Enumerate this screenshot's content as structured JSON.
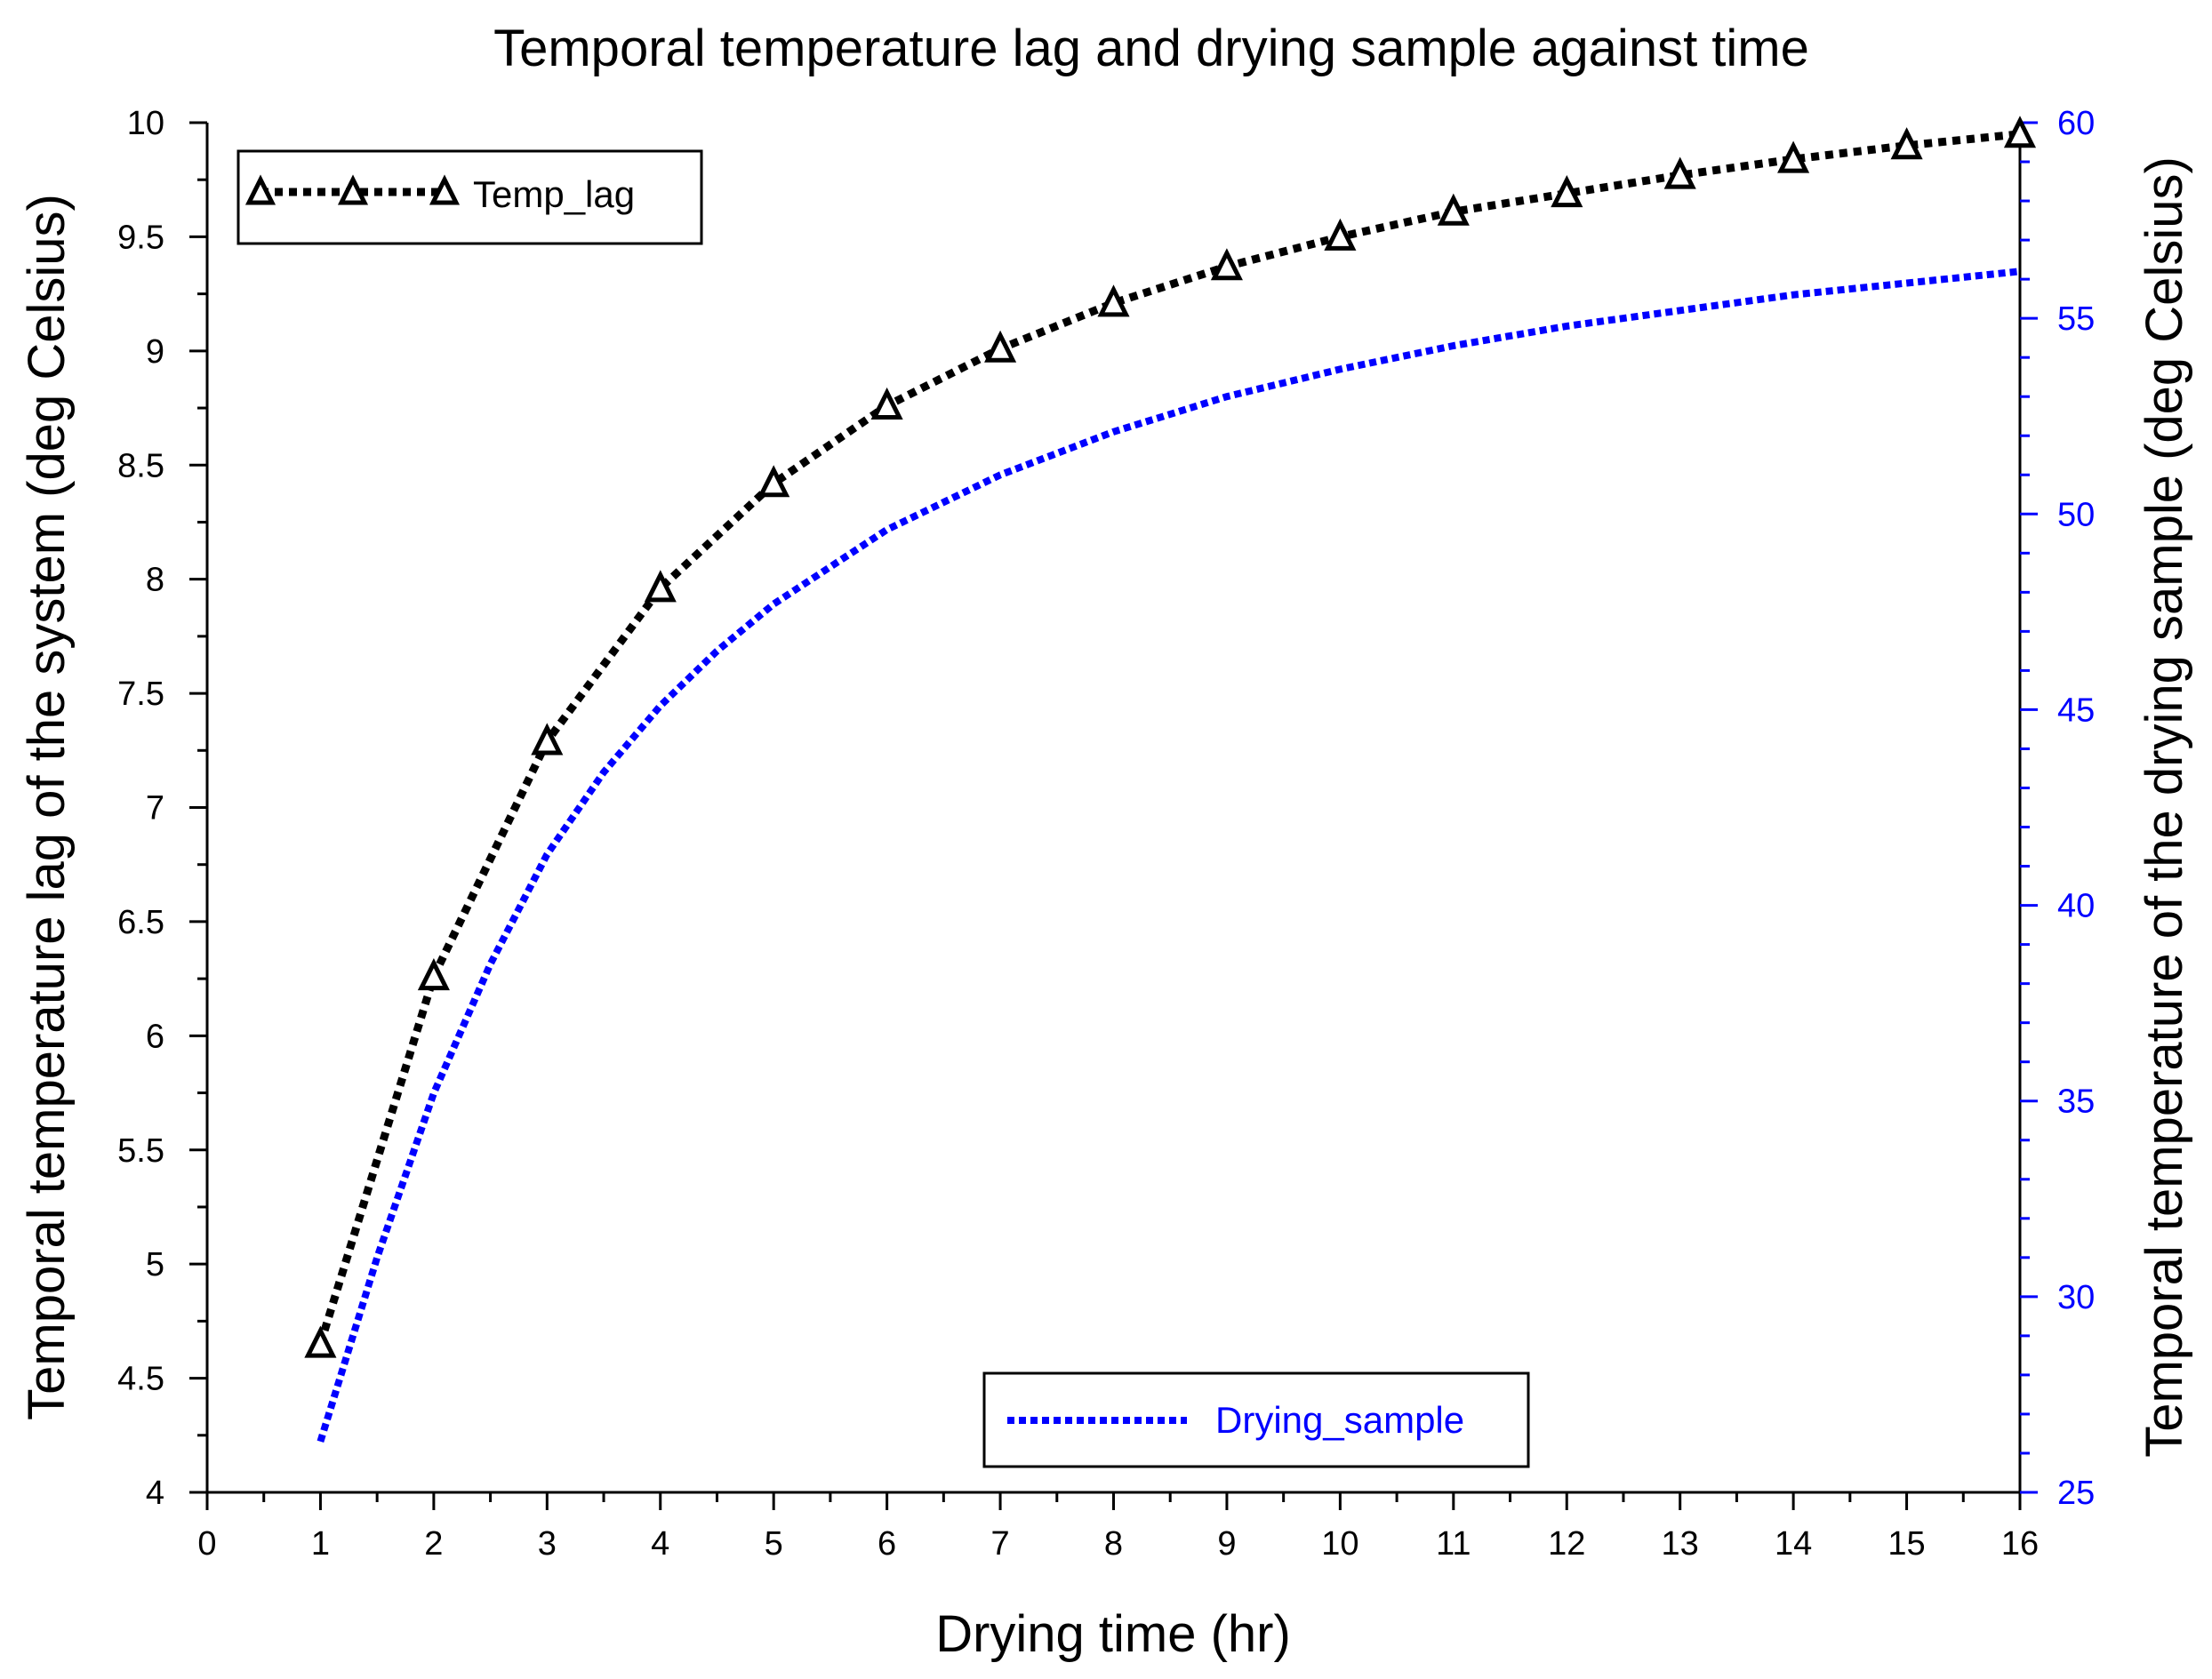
{
  "chart_data": {
    "type": "line",
    "title": "Temporal temperature lag and drying sample against time",
    "xlabel": "Drying time (hr)",
    "ylabel_left": "Temporal temperature lag of the system (deg Celsius)",
    "ylabel_right": "Temporal temperature of the drying sample (deg Celsius)",
    "xlim": [
      0,
      16
    ],
    "ylim_left": [
      4,
      10
    ],
    "ylim_right": [
      25,
      60
    ],
    "x_ticks": [
      "0",
      "1",
      "2",
      "3",
      "4",
      "5",
      "6",
      "7",
      "8",
      "9",
      "10",
      "11",
      "12",
      "13",
      "14",
      "15",
      "16"
    ],
    "y_left_ticks": [
      "4",
      "4.5",
      "5",
      "5.5",
      "6",
      "6.5",
      "7",
      "7.5",
      "8",
      "8.5",
      "9",
      "9.5",
      "10"
    ],
    "y_right_ticks": [
      "25",
      "30",
      "35",
      "40",
      "45",
      "50",
      "55",
      "60"
    ],
    "series": [
      {
        "name": "Temp_lag",
        "axis": "left",
        "color": "#000000",
        "marker": "open-triangle",
        "line": "dotted",
        "x": [
          1,
          2,
          3,
          4,
          5,
          6,
          7,
          8,
          9,
          10,
          11,
          12,
          13,
          14,
          15,
          16
        ],
        "values": [
          4.65,
          6.26,
          7.29,
          7.96,
          8.42,
          8.76,
          9.01,
          9.21,
          9.37,
          9.5,
          9.61,
          9.69,
          9.77,
          9.84,
          9.9,
          9.95
        ]
      },
      {
        "name": "Drying_sample",
        "axis": "right",
        "color": "#0000ff",
        "marker": "none",
        "line": "dotted",
        "x": [
          1,
          1.5,
          2,
          2.5,
          3,
          3.5,
          4,
          4.5,
          5,
          6,
          7,
          8,
          9,
          10,
          11,
          12,
          13,
          14,
          15,
          16
        ],
        "values": [
          26.3,
          31.0,
          35.2,
          38.5,
          41.3,
          43.4,
          45.1,
          46.5,
          47.7,
          49.6,
          51.0,
          52.1,
          53.0,
          53.7,
          54.3,
          54.8,
          55.2,
          55.6,
          55.9,
          56.2
        ]
      }
    ],
    "legends": [
      {
        "placement": "top-left",
        "entries": [
          "Temp_lag"
        ]
      },
      {
        "placement": "bottom-center",
        "entries": [
          "Drying_sample"
        ]
      }
    ]
  }
}
